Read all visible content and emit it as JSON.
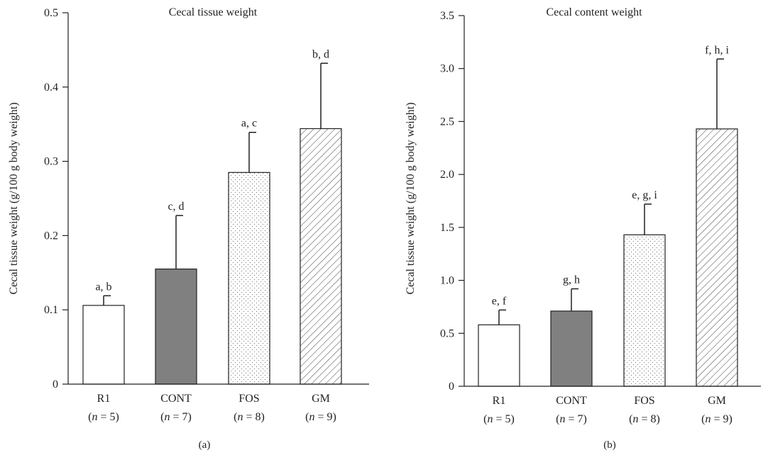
{
  "chart_data": [
    {
      "type": "bar",
      "panel": "(a)",
      "title": "Cecal tissue weight",
      "ylabel": "Cecal tissue weight (g/100 g body weight)",
      "ylim": [
        0,
        0.5
      ],
      "yticks": [
        0,
        0.1,
        0.2,
        0.3,
        0.4,
        0.5
      ],
      "ytick_labels": [
        "0",
        "0.1",
        "0.2",
        "0.3",
        "0.4",
        "0.5"
      ],
      "categories": [
        "R1",
        "CONT",
        "FOS",
        "GM"
      ],
      "n_labels": [
        "n = 5",
        "n = 7",
        "n = 8",
        "n = 9"
      ],
      "values": [
        0.106,
        0.155,
        0.285,
        0.344
      ],
      "errors": [
        0.013,
        0.072,
        0.054,
        0.088
      ],
      "letters": [
        "a, b",
        "c, d",
        "a, c",
        "b, d"
      ],
      "fills": [
        "white",
        "gray",
        "dots",
        "hatch"
      ]
    },
    {
      "type": "bar",
      "panel": "(b)",
      "title": "Cecal content weight",
      "ylabel": "Cecal tissue weight (g/100 g body weight)",
      "ylim": [
        0,
        3.5
      ],
      "yticks": [
        0,
        0.5,
        1.0,
        1.5,
        2.0,
        2.5,
        3.0,
        3.5
      ],
      "ytick_labels": [
        "0",
        "0.5",
        "1.0",
        "1.5",
        "2.0",
        "2.5",
        "3.0",
        "3.5"
      ],
      "categories": [
        "R1",
        "CONT",
        "FOS",
        "GM"
      ],
      "n_labels": [
        "n = 5",
        "n = 7",
        "n = 8",
        "n = 9"
      ],
      "values": [
        0.58,
        0.71,
        1.43,
        2.43
      ],
      "errors": [
        0.14,
        0.21,
        0.29,
        0.66
      ],
      "letters": [
        "e, f",
        "g, h",
        "e, g, i",
        "f, h, i"
      ],
      "fills": [
        "white",
        "gray",
        "dots",
        "hatch"
      ]
    }
  ],
  "colors": {
    "ink": "#231f20",
    "gray_bar": "#808080",
    "white_bar": "#ffffff"
  }
}
